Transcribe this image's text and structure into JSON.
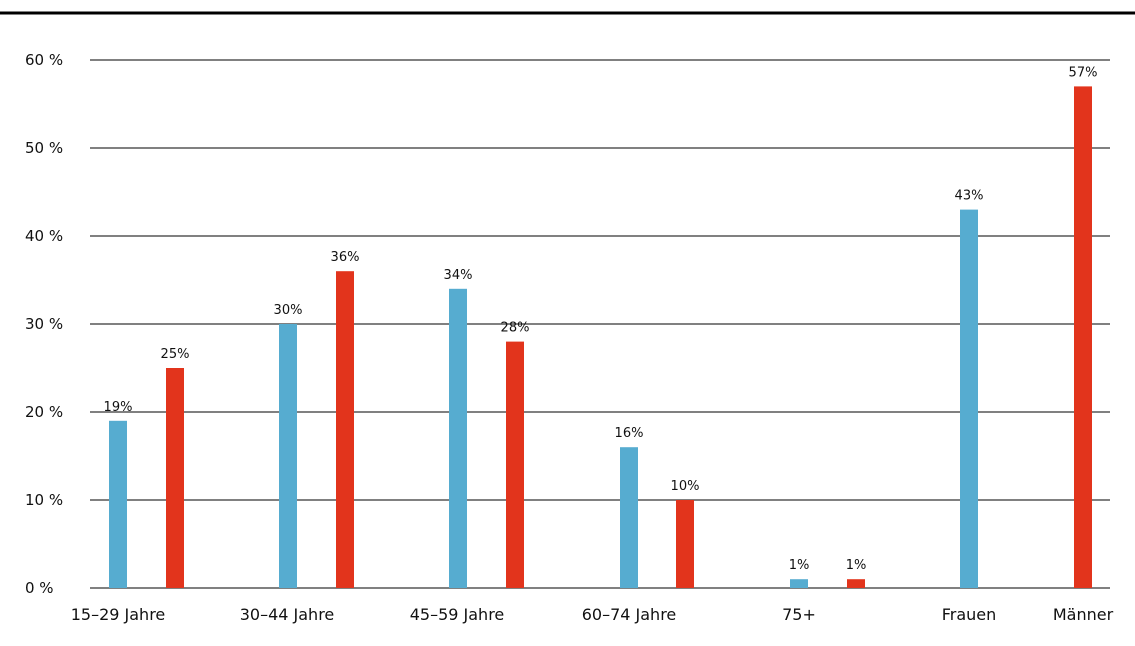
{
  "chart_data": {
    "type": "bar",
    "ylim": [
      0,
      60
    ],
    "y_ticks": [
      {
        "value": 0,
        "label": "0 %"
      },
      {
        "value": 10,
        "label": "10 %"
      },
      {
        "value": 20,
        "label": "20 %"
      },
      {
        "value": 30,
        "label": "30 %"
      },
      {
        "value": 40,
        "label": "40 %"
      },
      {
        "value": 50,
        "label": "50 %"
      },
      {
        "value": 60,
        "label": "60 %"
      }
    ],
    "grid": true,
    "colors": {
      "blue": "#56acd0",
      "red": "#e2341c"
    },
    "bars": [
      {
        "category": "15–29 Jahre",
        "color": "blue",
        "value": 19,
        "label": "19%"
      },
      {
        "category": "15–29 Jahre",
        "color": "red",
        "value": 25,
        "label": "25%"
      },
      {
        "category": "30–44 Jahre",
        "color": "blue",
        "value": 30,
        "label": "30%"
      },
      {
        "category": "30–44 Jahre",
        "color": "red",
        "value": 36,
        "label": "36%"
      },
      {
        "category": "45–59 Jahre",
        "color": "blue",
        "value": 34,
        "label": "34%"
      },
      {
        "category": "45–59 Jahre",
        "color": "red",
        "value": 28,
        "label": "28%"
      },
      {
        "category": "60–74 Jahre",
        "color": "blue",
        "value": 16,
        "label": "16%"
      },
      {
        "category": "60–74 Jahre",
        "color": "red",
        "value": 10,
        "label": "10%"
      },
      {
        "category": "75+",
        "color": "blue",
        "value": 1,
        "label": "1%"
      },
      {
        "category": "75+",
        "color": "red",
        "value": 1,
        "label": "1%"
      },
      {
        "category": "Frauen",
        "color": "blue",
        "value": 43,
        "label": "43%"
      },
      {
        "category": "Männer",
        "color": "red",
        "value": 57,
        "label": "57%"
      }
    ],
    "x_labels": [
      "15–29 Jahre",
      "30–44 Jahre",
      "45–59 Jahre",
      "60–74 Jahre",
      "75+",
      "Frauen",
      "Männer"
    ]
  }
}
